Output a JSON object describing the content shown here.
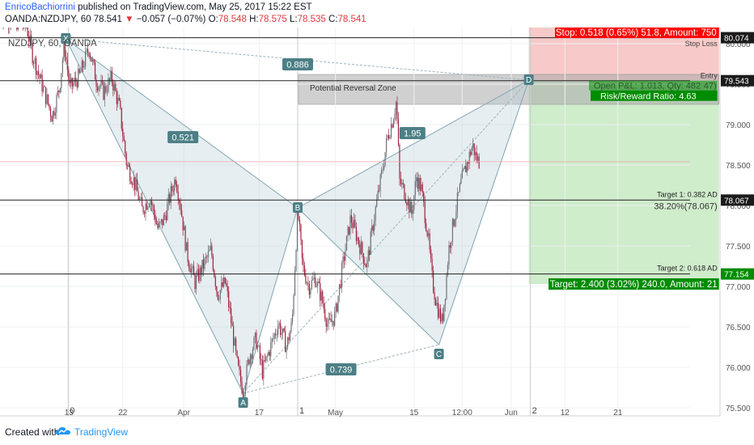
{
  "header": {
    "author": "EnricoBachiorrini",
    "published_text": "published on TradingView.com, May 25, 2017 15:22 EST",
    "symbol": "OANDA:NZDJPY, 60",
    "last": "78.541",
    "change": "−0.057 (−0.07%)",
    "o_label": "O:",
    "o": "78.548",
    "h_label": "H:",
    "h": "78.575",
    "l_label": "L:",
    "l": "78.535",
    "c_label": "C:",
    "c": "78.541"
  },
  "legend": "NZDJPY, 60, OANDA",
  "footer": {
    "created_with": "Created with",
    "brand": "TradingView"
  },
  "colors": {
    "up": "#6f6f78",
    "down": "#a3243f",
    "pattern_fill": "#b7cfd6",
    "stop_zone": "#f7c9c9",
    "target_zone": "#cfeccb",
    "prz": "#a9a9a9",
    "label_bg": "#4d7f86",
    "stop_badge": "#ff0000",
    "target_badge": "#008c00"
  },
  "chart_data": {
    "type": "candlestick",
    "symbol": "NZDJPY",
    "interval": "60",
    "ylim": [
      75.4,
      80.2
    ],
    "y_ticks": [
      75.5,
      76.0,
      76.5,
      77.0,
      77.5,
      78.0,
      78.5,
      79.0,
      79.5,
      80.0
    ],
    "x_ticks": [
      "13",
      "22",
      "Apr",
      "17",
      "May",
      "15",
      "12:00",
      "Jun",
      "12",
      "21"
    ],
    "x_range": [
      -7,
      853
    ],
    "x_tick_x": [
      79,
      146,
      222,
      316,
      411,
      509,
      569,
      630,
      697,
      763
    ],
    "price_markers": [
      {
        "label": "80.074",
        "value": 80.074,
        "style": "dark"
      },
      {
        "label": "79.543",
        "value": 79.543,
        "style": "dark"
      },
      {
        "label": "78.067",
        "value": 78.067,
        "style": "dark"
      },
      {
        "label": "77.154",
        "value": 77.154,
        "style": "green"
      }
    ],
    "pattern": {
      "points": [
        {
          "name": "X",
          "x": 75,
          "y": 80.06
        },
        {
          "name": "A",
          "x": 296,
          "y": 75.68
        },
        {
          "name": "B",
          "x": 364,
          "y": 77.97
        },
        {
          "name": "C",
          "x": 540,
          "y": 76.28
        },
        {
          "name": "D",
          "x": 652,
          "y": 79.55
        }
      ],
      "ratios": [
        {
          "label": "0.886",
          "x": 364,
          "y": 79.74
        },
        {
          "label": "0.521",
          "x": 221,
          "y": 78.84
        },
        {
          "label": "1.95",
          "x": 507,
          "y": 78.89
        },
        {
          "label": "0.739",
          "x": 418,
          "y": 75.97
        }
      ]
    },
    "prz": {
      "label": "Potential Reversal Zone",
      "x1": 365,
      "x2": 889,
      "y_top": 79.62,
      "y_bottom": 79.25
    },
    "position": {
      "x1": 652,
      "x2": 889,
      "entry": 79.543,
      "stop": 80.23,
      "target": 77.03,
      "stop_text": "Stop: 0.518 (0.65%) 51.8, Amount: 750",
      "stop_loss_label": "Stop Loss",
      "entry_label": "Entry",
      "open_pl_text": "Open P&L: 1.013, Qty: 482",
      "open_pl_suffix": "47)",
      "rr_text": "Risk/Reward Ratio: 4.63",
      "target_text": "Target: 2.400 (3.02%) 240.0, Amount: 21"
    },
    "horizontal_lines": [
      80.074,
      79.543,
      78.067,
      77.154
    ],
    "current_price": 78.541,
    "targets": [
      {
        "label": "Target 1: 0.382 AD",
        "fib_text": "38.20%(78.067)",
        "value": 78.067
      },
      {
        "label": "Target 2: 0.618 AD",
        "value": 77.154
      }
    ],
    "vertical_markers": [
      {
        "label": "0",
        "x": 78
      },
      {
        "label": "1",
        "x": 364
      },
      {
        "label": "2",
        "x": 654
      }
    ],
    "price_path": [
      [
        -7,
        80.35
      ],
      [
        26,
        80.22
      ],
      [
        33,
        79.88
      ],
      [
        45,
        79.5
      ],
      [
        58,
        79.1
      ],
      [
        67,
        79.45
      ],
      [
        73,
        80.0
      ],
      [
        80,
        79.45
      ],
      [
        92,
        79.6
      ],
      [
        104,
        79.95
      ],
      [
        113,
        79.55
      ],
      [
        122,
        79.4
      ],
      [
        132,
        79.58
      ],
      [
        142,
        79.2
      ],
      [
        151,
        78.5
      ],
      [
        160,
        78.3
      ],
      [
        170,
        77.95
      ],
      [
        180,
        78.1
      ],
      [
        190,
        77.7
      ],
      [
        198,
        77.85
      ],
      [
        206,
        78.15
      ],
      [
        212,
        78.35
      ],
      [
        218,
        78.0
      ],
      [
        226,
        77.4
      ],
      [
        236,
        77.05
      ],
      [
        246,
        77.25
      ],
      [
        256,
        77.45
      ],
      [
        264,
        76.9
      ],
      [
        274,
        77.05
      ],
      [
        282,
        76.5
      ],
      [
        289,
        76.0
      ],
      [
        296,
        75.7
      ],
      [
        304,
        76.15
      ],
      [
        312,
        76.35
      ],
      [
        320,
        75.95
      ],
      [
        330,
        76.25
      ],
      [
        340,
        76.55
      ],
      [
        350,
        76.25
      ],
      [
        357,
        76.55
      ],
      [
        364,
        77.95
      ],
      [
        370,
        77.25
      ],
      [
        378,
        77.0
      ],
      [
        386,
        77.1
      ],
      [
        394,
        76.85
      ],
      [
        402,
        76.5
      ],
      [
        411,
        76.65
      ],
      [
        420,
        77.25
      ],
      [
        430,
        77.85
      ],
      [
        440,
        77.55
      ],
      [
        450,
        77.25
      ],
      [
        460,
        77.9
      ],
      [
        468,
        78.35
      ],
      [
        476,
        78.85
      ],
      [
        482,
        79.05
      ],
      [
        487,
        79.3
      ],
      [
        491,
        78.3
      ],
      [
        498,
        78.15
      ],
      [
        506,
        77.9
      ],
      [
        512,
        78.35
      ],
      [
        518,
        78.2
      ],
      [
        526,
        77.65
      ],
      [
        532,
        77.05
      ],
      [
        538,
        76.75
      ],
      [
        544,
        76.55
      ],
      [
        548,
        76.95
      ],
      [
        552,
        77.45
      ],
      [
        560,
        77.9
      ],
      [
        568,
        78.3
      ],
      [
        576,
        78.55
      ],
      [
        582,
        78.75
      ],
      [
        586,
        78.6
      ],
      [
        590,
        78.54
      ]
    ]
  }
}
